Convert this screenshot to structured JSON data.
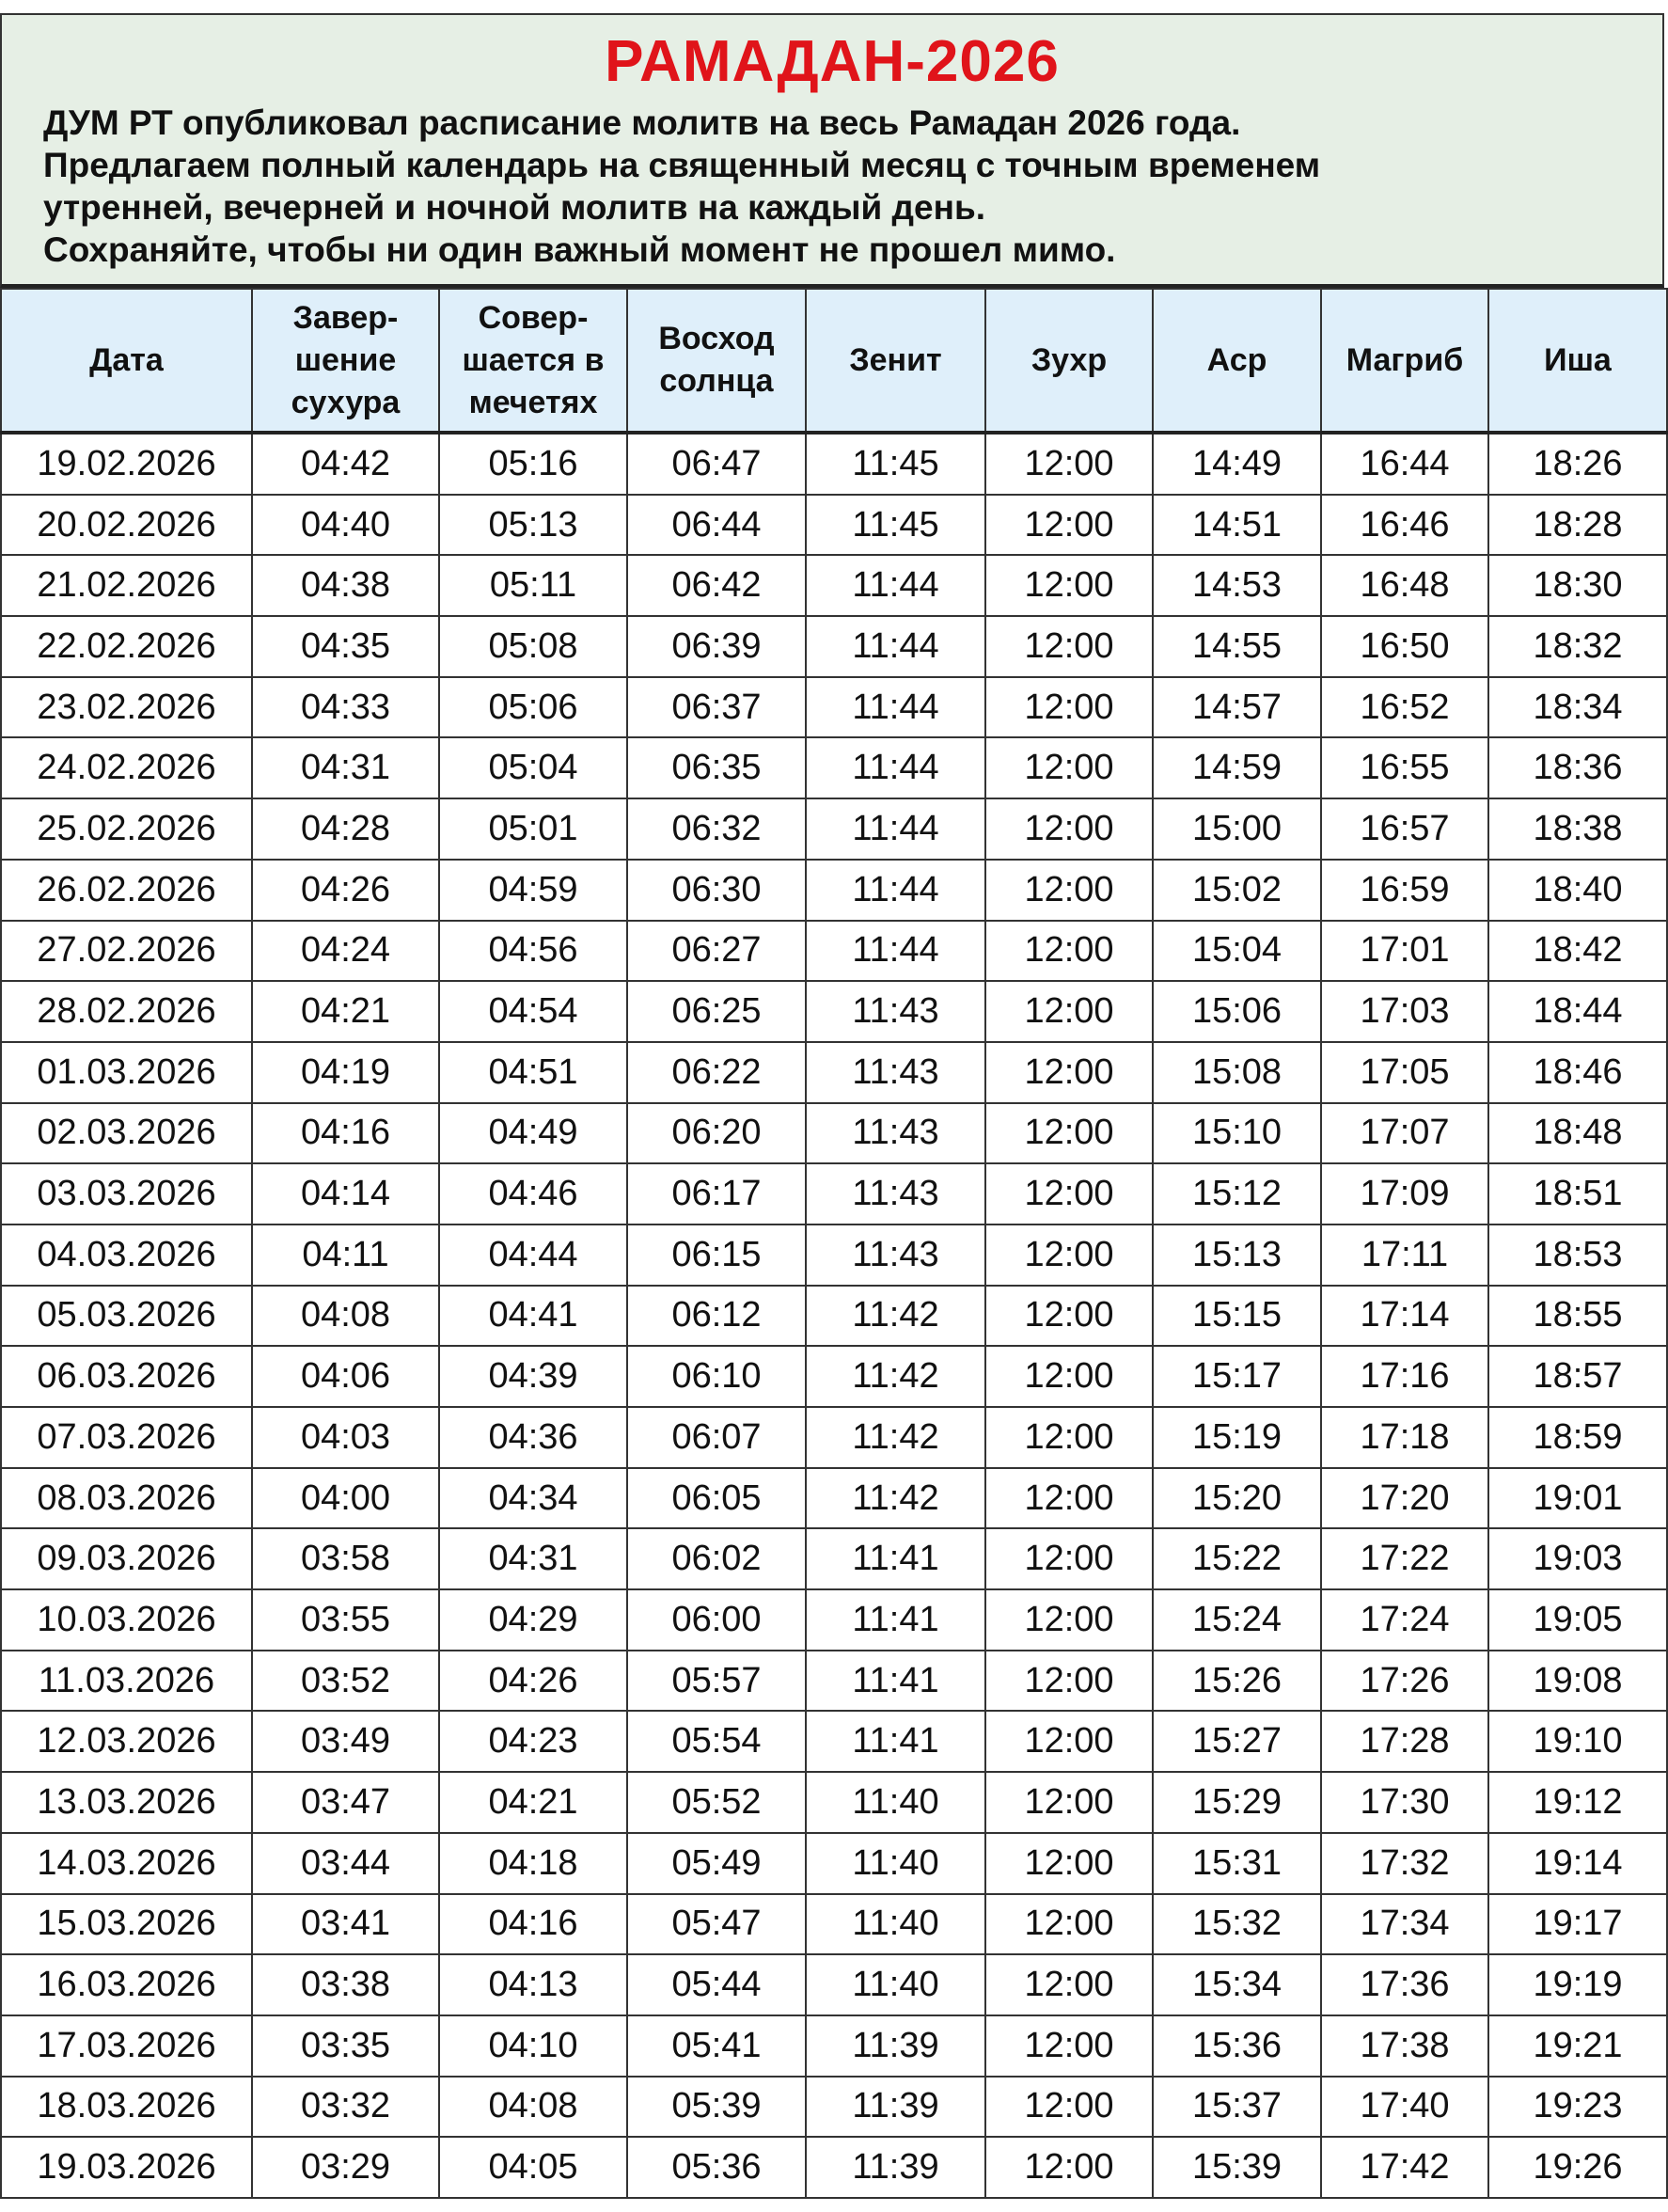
{
  "header": {
    "title": "РАМАДАН-2026",
    "description": "ДУМ РТ опубликовал расписание молитв на весь Рамадан 2026 года.\nПредлагаем полный календарь на священный месяц с точным временем\nутренней, вечерней и ночной молитв на каждый день.\nСохраняйте, чтобы ни один важный момент не прошел мимо.",
    "title_color": "#e0141a",
    "background_color": "#e6efe5"
  },
  "table": {
    "columns": [
      "Дата",
      "Завер-\nшение\nсухура",
      "Совер-\nшается в\nмечетях",
      "Восход\nсолнца",
      "Зенит",
      "Зухр",
      "Аср",
      "Магриб",
      "Иша"
    ],
    "rows": [
      [
        "19.02.2026",
        "04:42",
        "05:16",
        "06:47",
        "11:45",
        "12:00",
        "14:49",
        "16:44",
        "18:26"
      ],
      [
        "20.02.2026",
        "04:40",
        "05:13",
        "06:44",
        "11:45",
        "12:00",
        "14:51",
        "16:46",
        "18:28"
      ],
      [
        "21.02.2026",
        "04:38",
        "05:11",
        "06:42",
        "11:44",
        "12:00",
        "14:53",
        "16:48",
        "18:30"
      ],
      [
        "22.02.2026",
        "04:35",
        "05:08",
        "06:39",
        "11:44",
        "12:00",
        "14:55",
        "16:50",
        "18:32"
      ],
      [
        "23.02.2026",
        "04:33",
        "05:06",
        "06:37",
        "11:44",
        "12:00",
        "14:57",
        "16:52",
        "18:34"
      ],
      [
        "24.02.2026",
        "04:31",
        "05:04",
        "06:35",
        "11:44",
        "12:00",
        "14:59",
        "16:55",
        "18:36"
      ],
      [
        "25.02.2026",
        "04:28",
        "05:01",
        "06:32",
        "11:44",
        "12:00",
        "15:00",
        "16:57",
        "18:38"
      ],
      [
        "26.02.2026",
        "04:26",
        "04:59",
        "06:30",
        "11:44",
        "12:00",
        "15:02",
        "16:59",
        "18:40"
      ],
      [
        "27.02.2026",
        "04:24",
        "04:56",
        "06:27",
        "11:44",
        "12:00",
        "15:04",
        "17:01",
        "18:42"
      ],
      [
        "28.02.2026",
        "04:21",
        "04:54",
        "06:25",
        "11:43",
        "12:00",
        "15:06",
        "17:03",
        "18:44"
      ],
      [
        "01.03.2026",
        "04:19",
        "04:51",
        "06:22",
        "11:43",
        "12:00",
        "15:08",
        "17:05",
        "18:46"
      ],
      [
        "02.03.2026",
        "04:16",
        "04:49",
        "06:20",
        "11:43",
        "12:00",
        "15:10",
        "17:07",
        "18:48"
      ],
      [
        "03.03.2026",
        "04:14",
        "04:46",
        "06:17",
        "11:43",
        "12:00",
        "15:12",
        "17:09",
        "18:51"
      ],
      [
        "04.03.2026",
        "04:11",
        "04:44",
        "06:15",
        "11:43",
        "12:00",
        "15:13",
        "17:11",
        "18:53"
      ],
      [
        "05.03.2026",
        "04:08",
        "04:41",
        "06:12",
        "11:42",
        "12:00",
        "15:15",
        "17:14",
        "18:55"
      ],
      [
        "06.03.2026",
        "04:06",
        "04:39",
        "06:10",
        "11:42",
        "12:00",
        "15:17",
        "17:16",
        "18:57"
      ],
      [
        "07.03.2026",
        "04:03",
        "04:36",
        "06:07",
        "11:42",
        "12:00",
        "15:19",
        "17:18",
        "18:59"
      ],
      [
        "08.03.2026",
        "04:00",
        "04:34",
        "06:05",
        "11:42",
        "12:00",
        "15:20",
        "17:20",
        "19:01"
      ],
      [
        "09.03.2026",
        "03:58",
        "04:31",
        "06:02",
        "11:41",
        "12:00",
        "15:22",
        "17:22",
        "19:03"
      ],
      [
        "10.03.2026",
        "03:55",
        "04:29",
        "06:00",
        "11:41",
        "12:00",
        "15:24",
        "17:24",
        "19:05"
      ],
      [
        "11.03.2026",
        "03:52",
        "04:26",
        "05:57",
        "11:41",
        "12:00",
        "15:26",
        "17:26",
        "19:08"
      ],
      [
        "12.03.2026",
        "03:49",
        "04:23",
        "05:54",
        "11:41",
        "12:00",
        "15:27",
        "17:28",
        "19:10"
      ],
      [
        "13.03.2026",
        "03:47",
        "04:21",
        "05:52",
        "11:40",
        "12:00",
        "15:29",
        "17:30",
        "19:12"
      ],
      [
        "14.03.2026",
        "03:44",
        "04:18",
        "05:49",
        "11:40",
        "12:00",
        "15:31",
        "17:32",
        "19:14"
      ],
      [
        "15.03.2026",
        "03:41",
        "04:16",
        "05:47",
        "11:40",
        "12:00",
        "15:32",
        "17:34",
        "19:17"
      ],
      [
        "16.03.2026",
        "03:38",
        "04:13",
        "05:44",
        "11:40",
        "12:00",
        "15:34",
        "17:36",
        "19:19"
      ],
      [
        "17.03.2026",
        "03:35",
        "04:10",
        "05:41",
        "11:39",
        "12:00",
        "15:36",
        "17:38",
        "19:21"
      ],
      [
        "18.03.2026",
        "03:32",
        "04:08",
        "05:39",
        "11:39",
        "12:00",
        "15:37",
        "17:40",
        "19:23"
      ],
      [
        "19.03.2026",
        "03:29",
        "04:05",
        "05:36",
        "11:39",
        "12:00",
        "15:39",
        "17:42",
        "19:26"
      ]
    ],
    "header_background": "#dfeffa"
  }
}
